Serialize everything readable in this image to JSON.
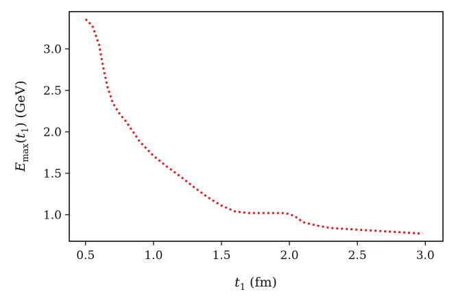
{
  "chart_data": {
    "type": "line",
    "xlabel_parts": {
      "var": "t",
      "sub": "1",
      "rest": " (fm)"
    },
    "ylabel_parts": {
      "var": "E",
      "sub": "max",
      "mid": "(",
      "var2": "t",
      "sub2": "1",
      "rest": ") (GeV)"
    },
    "xlim": [
      0.38,
      3.13
    ],
    "ylim": [
      0.68,
      3.45
    ],
    "xticks": [
      "0.5",
      "1.0",
      "1.5",
      "2.0",
      "2.5",
      "3.0"
    ],
    "yticks": [
      "1.0",
      "1.5",
      "2.0",
      "2.5",
      "3.0"
    ],
    "grid": false,
    "series": [
      {
        "color": "#e31a1c",
        "style": "dotted",
        "x": [
          0.5,
          0.55,
          0.6,
          0.63,
          0.66,
          0.7,
          0.75,
          0.8,
          0.85,
          0.9,
          1.0,
          1.1,
          1.2,
          1.3,
          1.4,
          1.5,
          1.6,
          1.7,
          1.8,
          1.9,
          1.95,
          2.0,
          2.05,
          2.1,
          2.2,
          2.3,
          2.5,
          2.7,
          2.9,
          2.98
        ],
        "y": [
          3.36,
          3.28,
          3.05,
          2.78,
          2.55,
          2.35,
          2.22,
          2.12,
          2.0,
          1.88,
          1.71,
          1.58,
          1.46,
          1.33,
          1.21,
          1.11,
          1.04,
          1.02,
          1.02,
          1.02,
          1.02,
          1.01,
          0.97,
          0.91,
          0.87,
          0.84,
          0.82,
          0.8,
          0.78,
          0.77
        ]
      }
    ]
  }
}
